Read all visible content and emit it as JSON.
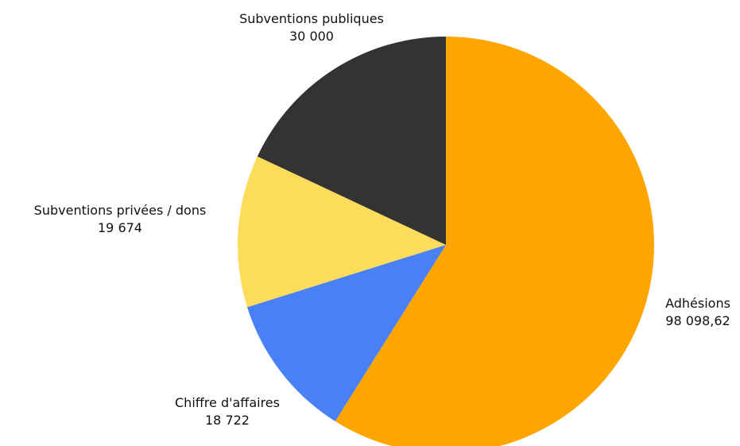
{
  "chart_data": {
    "type": "pie",
    "start_angle_deg": 0,
    "direction": "clockwise",
    "slices": [
      {
        "label": "Adhésions",
        "value_label": "98 098,62",
        "value": 98098.62,
        "color": "#ffa500"
      },
      {
        "label": "Chiffre d'affaires",
        "value_label": "18 722",
        "value": 18722,
        "color": "#4a80f5"
      },
      {
        "label": "Subventions privées / dons",
        "value_label": "19 674",
        "value": 19674,
        "color": "#fddc5c"
      },
      {
        "label": "Subventions publiques",
        "value_label": "30 000",
        "value": 30000,
        "color": "#333333"
      }
    ]
  }
}
